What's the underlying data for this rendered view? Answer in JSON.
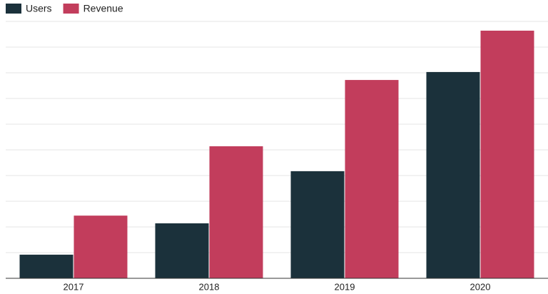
{
  "chart_data": {
    "type": "bar",
    "categories": [
      "2017",
      "2018",
      "2019",
      "2020"
    ],
    "series": [
      {
        "name": "Users",
        "color": "#1b313b",
        "values": [
          9.2,
          21.4,
          41.7,
          80.3
        ]
      },
      {
        "name": "Revenue",
        "color": "#c23d5c",
        "values": [
          24.4,
          51.4,
          77.2,
          96.4
        ]
      }
    ],
    "ylim": [
      0,
      100
    ],
    "yticks": [
      0,
      10,
      20,
      30,
      40,
      50,
      60,
      70,
      80,
      90,
      100
    ],
    "grid": true,
    "legend": "top-left"
  }
}
